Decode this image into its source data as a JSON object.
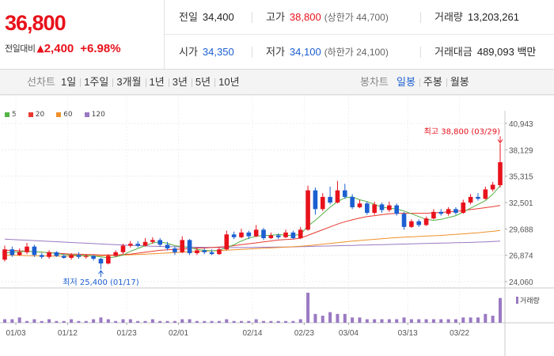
{
  "price": {
    "current": "36,800",
    "change_label": "전일대비",
    "change_arrow": "▲",
    "change_amount": "2,400",
    "change_rate": "+6.98%"
  },
  "stats": {
    "prev_close": {
      "label": "전일",
      "value": "34,400"
    },
    "high": {
      "label": "고가",
      "value": "38,800",
      "sub": "(상한가 44,700)"
    },
    "volume": {
      "label": "거래량",
      "value": "13,203,261"
    },
    "open": {
      "label": "시가",
      "value": "34,350"
    },
    "low": {
      "label": "저가",
      "value": "34,100",
      "sub": "(하한가 24,100)"
    },
    "trade_value": {
      "label": "거래대금",
      "value": "489,093 백만"
    }
  },
  "toolbar": {
    "line_chart_label": "선차트",
    "periods": [
      "1일",
      "1주일",
      "3개월",
      "1년",
      "3년",
      "5년",
      "10년"
    ],
    "candle_chart_label": "봉차트",
    "candle_periods": [
      "일봉",
      "주봉",
      "월봉"
    ],
    "active_candle_period": "일봉"
  },
  "colors": {
    "up": "#e8121c",
    "down": "#1c5fd1",
    "ma5": "#54b245",
    "ma20": "#e8392f",
    "ma60": "#f0912a",
    "ma120": "#9a79c2",
    "volume": "#9a79c2"
  },
  "chart_data": {
    "type": "candlestick",
    "ma_legend": [
      "5",
      "20",
      "60",
      "120"
    ],
    "y_ticks": [
      "40,943",
      "38,129",
      "35,315",
      "32,501",
      "29,688",
      "26,874",
      "24,060"
    ],
    "ylim": [
      24060,
      40943
    ],
    "x_ticks": [
      "01/03",
      "01/12",
      "01/23",
      "02/01",
      "02/14",
      "02/23",
      "03/04",
      "03/13",
      "03/22"
    ],
    "high_annotation": "최고 38,800 (03/29)",
    "low_annotation": "최저 25,400 (01/17)",
    "volume_label": "거래량",
    "candles": [
      {
        "o": 26400,
        "c": 27500,
        "h": 27900,
        "l": 26200
      },
      {
        "o": 27500,
        "c": 26900,
        "h": 27800,
        "l": 26700
      },
      {
        "o": 26900,
        "c": 27200,
        "h": 27600,
        "l": 26800
      },
      {
        "o": 27200,
        "c": 27800,
        "h": 28200,
        "l": 27000
      },
      {
        "o": 27800,
        "c": 26900,
        "h": 28000,
        "l": 26700
      },
      {
        "o": 26900,
        "c": 26700,
        "h": 27100,
        "l": 26500
      },
      {
        "o": 26700,
        "c": 27200,
        "h": 27400,
        "l": 26500
      },
      {
        "o": 27200,
        "c": 26800,
        "h": 27300,
        "l": 26700
      },
      {
        "o": 26800,
        "c": 26600,
        "h": 27000,
        "l": 26500
      },
      {
        "o": 26600,
        "c": 26900,
        "h": 27100,
        "l": 26400
      },
      {
        "o": 26900,
        "c": 26700,
        "h": 27200,
        "l": 26500
      },
      {
        "o": 26700,
        "c": 26800,
        "h": 27000,
        "l": 26500
      },
      {
        "o": 26800,
        "c": 26500,
        "h": 26900,
        "l": 26300
      },
      {
        "o": 26500,
        "c": 26000,
        "h": 26600,
        "l": 25400
      },
      {
        "o": 26000,
        "c": 26800,
        "h": 27000,
        "l": 25900
      },
      {
        "o": 26800,
        "c": 27200,
        "h": 27400,
        "l": 26700
      },
      {
        "o": 27200,
        "c": 27900,
        "h": 28100,
        "l": 27000
      },
      {
        "o": 27900,
        "c": 28100,
        "h": 28400,
        "l": 27700
      },
      {
        "o": 28100,
        "c": 27900,
        "h": 28400,
        "l": 27700
      },
      {
        "o": 27900,
        "c": 28300,
        "h": 28700,
        "l": 27800
      },
      {
        "o": 28300,
        "c": 28500,
        "h": 28800,
        "l": 28100
      },
      {
        "o": 28500,
        "c": 28000,
        "h": 28700,
        "l": 27800
      },
      {
        "o": 28000,
        "c": 27600,
        "h": 28300,
        "l": 27400
      },
      {
        "o": 27600,
        "c": 27200,
        "h": 27800,
        "l": 26900
      },
      {
        "o": 27200,
        "c": 28500,
        "h": 28900,
        "l": 27100
      },
      {
        "o": 28500,
        "c": 27100,
        "h": 28600,
        "l": 26900
      },
      {
        "o": 27100,
        "c": 27400,
        "h": 27700,
        "l": 26900
      },
      {
        "o": 27400,
        "c": 27200,
        "h": 27600,
        "l": 27000
      },
      {
        "o": 27200,
        "c": 27000,
        "h": 27500,
        "l": 26900
      },
      {
        "o": 27000,
        "c": 27500,
        "h": 27700,
        "l": 26900
      },
      {
        "o": 27500,
        "c": 29100,
        "h": 29500,
        "l": 27400
      },
      {
        "o": 29100,
        "c": 28800,
        "h": 29400,
        "l": 28600
      },
      {
        "o": 28800,
        "c": 29300,
        "h": 29700,
        "l": 28700
      },
      {
        "o": 29300,
        "c": 28900,
        "h": 29500,
        "l": 28600
      },
      {
        "o": 28900,
        "c": 29600,
        "h": 30100,
        "l": 28800
      },
      {
        "o": 29600,
        "c": 28700,
        "h": 29800,
        "l": 28500
      },
      {
        "o": 28700,
        "c": 29000,
        "h": 29300,
        "l": 28600
      },
      {
        "o": 29000,
        "c": 28800,
        "h": 29200,
        "l": 28600
      },
      {
        "o": 28800,
        "c": 29300,
        "h": 29600,
        "l": 28700
      },
      {
        "o": 29300,
        "c": 28700,
        "h": 29500,
        "l": 28600
      },
      {
        "o": 28700,
        "c": 29600,
        "h": 29900,
        "l": 28600
      },
      {
        "o": 29600,
        "c": 33800,
        "h": 34300,
        "l": 29500
      },
      {
        "o": 33800,
        "c": 31800,
        "h": 34100,
        "l": 31200
      },
      {
        "o": 31800,
        "c": 33100,
        "h": 33500,
        "l": 31600
      },
      {
        "o": 33100,
        "c": 32500,
        "h": 34200,
        "l": 32300
      },
      {
        "o": 32500,
        "c": 33800,
        "h": 34800,
        "l": 32400
      },
      {
        "o": 33800,
        "c": 33100,
        "h": 34500,
        "l": 32900
      },
      {
        "o": 33100,
        "c": 32000,
        "h": 33400,
        "l": 31800
      },
      {
        "o": 32000,
        "c": 32400,
        "h": 32800,
        "l": 31900
      },
      {
        "o": 32400,
        "c": 31400,
        "h": 32600,
        "l": 31200
      },
      {
        "o": 31400,
        "c": 32300,
        "h": 32600,
        "l": 31200
      },
      {
        "o": 32300,
        "c": 31700,
        "h": 32500,
        "l": 31400
      },
      {
        "o": 31700,
        "c": 32200,
        "h": 32600,
        "l": 31500
      },
      {
        "o": 32200,
        "c": 31300,
        "h": 32400,
        "l": 31100
      },
      {
        "o": 31300,
        "c": 29900,
        "h": 31500,
        "l": 29600
      },
      {
        "o": 29900,
        "c": 30500,
        "h": 30700,
        "l": 29800
      },
      {
        "o": 30500,
        "c": 30100,
        "h": 30700,
        "l": 29900
      },
      {
        "o": 30100,
        "c": 30800,
        "h": 31000,
        "l": 30000
      },
      {
        "o": 30800,
        "c": 31500,
        "h": 31800,
        "l": 30700
      },
      {
        "o": 31500,
        "c": 31300,
        "h": 31800,
        "l": 31100
      },
      {
        "o": 31300,
        "c": 31800,
        "h": 32000,
        "l": 31100
      },
      {
        "o": 31800,
        "c": 31400,
        "h": 32000,
        "l": 31200
      },
      {
        "o": 31400,
        "c": 32500,
        "h": 32800,
        "l": 31300
      },
      {
        "o": 32500,
        "c": 33100,
        "h": 33400,
        "l": 32300
      },
      {
        "o": 33100,
        "c": 32900,
        "h": 33500,
        "l": 32700
      },
      {
        "o": 32900,
        "c": 33900,
        "h": 34200,
        "l": 32800
      },
      {
        "o": 33900,
        "c": 34400,
        "h": 34700,
        "l": 33700
      },
      {
        "o": 34350,
        "c": 36800,
        "h": 38800,
        "l": 34100
      }
    ],
    "ma5": [
      27100,
      27200,
      27250,
      27300,
      27260,
      27200,
      27150,
      27050,
      26950,
      26900,
      26880,
      26850,
      26800,
      26700,
      26600,
      26700,
      26900,
      27300,
      27600,
      27900,
      28200,
      28300,
      28150,
      27900,
      27800,
      27700,
      27500,
      27400,
      27350,
      27400,
      27700,
      28000,
      28400,
      28700,
      28900,
      29000,
      29000,
      29100,
      29000,
      29000,
      29100,
      30000,
      30600,
      31300,
      32000,
      32600,
      33000,
      33100,
      32800,
      32600,
      32300,
      32000,
      31900,
      31800,
      31600,
      31300,
      31000,
      30700,
      30600,
      30700,
      30900,
      31100,
      31500,
      31900,
      32300,
      32700,
      33400,
      34300
    ],
    "ma20": [
      27400,
      27400,
      27350,
      27300,
      27250,
      27200,
      27150,
      27100,
      27050,
      27000,
      27000,
      26950,
      26950,
      26900,
      26900,
      26900,
      26950,
      27000,
      27100,
      27200,
      27300,
      27400,
      27450,
      27500,
      27550,
      27600,
      27650,
      27650,
      27700,
      27750,
      27800,
      27900,
      28000,
      28100,
      28200,
      28300,
      28400,
      28500,
      28550,
      28600,
      28700,
      29000,
      29300,
      29600,
      29900,
      30200,
      30450,
      30650,
      30850,
      31000,
      31100,
      31200,
      31300,
      31350,
      31350,
      31350,
      31350,
      31350,
      31400,
      31450,
      31500,
      31550,
      31650,
      31750,
      31850,
      31950,
      32050,
      32200
    ],
    "ma60": [
      26900,
      26880,
      26860,
      26840,
      26820,
      26810,
      26800,
      26790,
      26790,
      26790,
      26800,
      26810,
      26820,
      26830,
      26850,
      26870,
      26900,
      26930,
      26960,
      27000,
      27040,
      27080,
      27120,
      27160,
      27200,
      27240,
      27280,
      27310,
      27340,
      27380,
      27420,
      27460,
      27500,
      27540,
      27580,
      27620,
      27660,
      27700,
      27740,
      27780,
      27830,
      27900,
      27980,
      28060,
      28140,
      28220,
      28300,
      28380,
      28450,
      28520,
      28580,
      28640,
      28700,
      28750,
      28800,
      28840,
      28880,
      28920,
      28960,
      29000,
      29050,
      29100,
      29160,
      29220,
      29280,
      29350,
      29430,
      29520
    ],
    "ma120": [
      28600,
      28560,
      28520,
      28480,
      28440,
      28400,
      28360,
      28320,
      28280,
      28240,
      28200,
      28160,
      28120,
      28080,
      28040,
      28000,
      27960,
      27930,
      27900,
      27870,
      27840,
      27820,
      27800,
      27780,
      27760,
      27740,
      27730,
      27720,
      27710,
      27700,
      27700,
      27700,
      27700,
      27710,
      27720,
      27730,
      27740,
      27750,
      27760,
      27770,
      27790,
      27810,
      27830,
      27850,
      27870,
      27890,
      27910,
      27930,
      27950,
      27970,
      27990,
      28010,
      28030,
      28050,
      28070,
      28090,
      28110,
      28130,
      28150,
      28170,
      28190,
      28210,
      28230,
      28250,
      28280,
      28310,
      28340,
      28380
    ],
    "volume": [
      2,
      2,
      3,
      1,
      2,
      1,
      2,
      1,
      1,
      2,
      1,
      1,
      2,
      3,
      2,
      1,
      2,
      2,
      1,
      1,
      2,
      1,
      1,
      1,
      2,
      2,
      1,
      1,
      1,
      1,
      2,
      1,
      1,
      1,
      2,
      1,
      1,
      1,
      1,
      1,
      2,
      17,
      5,
      4,
      6,
      5,
      5,
      3,
      3,
      2,
      2,
      2,
      2,
      2,
      3,
      2,
      2,
      2,
      2,
      2,
      2,
      2,
      3,
      3,
      3,
      5,
      4,
      14
    ],
    "volume_max": 17
  }
}
